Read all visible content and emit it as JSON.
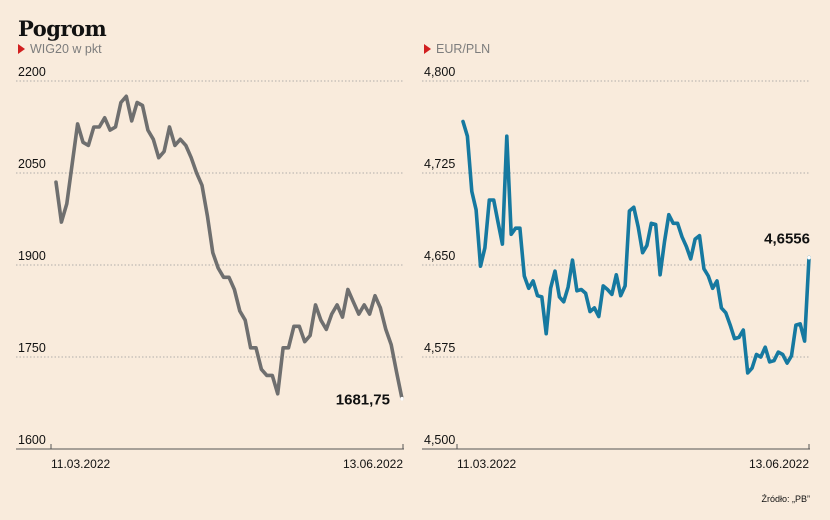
{
  "title": "Pogrom",
  "source": "Źródło: „PB”",
  "colors": {
    "background": "#f9ebdc",
    "marker": "#d11f1f",
    "wig_line": "#6f6f6f",
    "eur_line": "#1679a0",
    "grid": "#999999"
  },
  "chart_data": [
    {
      "type": "line",
      "subtitle": "WIG20 w pkt",
      "x_start_label": "11.03.2022",
      "x_end_label": "13.06.2022",
      "ylim": [
        1600,
        2200
      ],
      "yticks": [
        1600,
        1750,
        1900,
        2050,
        2200
      ],
      "ytick_labels": [
        "1600",
        "1750",
        "1900",
        "2050",
        "2200"
      ],
      "last_value_label": "1681,75",
      "grid": "horizontal dotted",
      "values": [
        2035,
        1970,
        2000,
        2065,
        2130,
        2100,
        2095,
        2125,
        2125,
        2140,
        2120,
        2125,
        2165,
        2175,
        2135,
        2165,
        2160,
        2120,
        2105,
        2075,
        2085,
        2125,
        2095,
        2105,
        2095,
        2075,
        2050,
        2030,
        1980,
        1920,
        1895,
        1880,
        1880,
        1860,
        1825,
        1810,
        1765,
        1765,
        1730,
        1720,
        1720,
        1690,
        1765,
        1765,
        1800,
        1800,
        1775,
        1785,
        1835,
        1810,
        1795,
        1820,
        1835,
        1815,
        1860,
        1840,
        1820,
        1835,
        1820,
        1850,
        1830,
        1795,
        1770,
        1725,
        1682
      ]
    },
    {
      "type": "line",
      "subtitle": "EUR/PLN",
      "x_start_label": "11.03.2022",
      "x_end_label": "13.06.2022",
      "ylim": [
        4.5,
        4.8
      ],
      "yticks": [
        4.5,
        4.575,
        4.65,
        4.725,
        4.8
      ],
      "ytick_labels": [
        "4,500",
        "4,575",
        "4,650",
        "4,725",
        "4,800"
      ],
      "last_value_label": "4,6556",
      "grid": "horizontal dotted",
      "values": [
        4.767,
        4.755,
        4.71,
        4.695,
        4.649,
        4.664,
        4.703,
        4.703,
        4.685,
        4.667,
        4.755,
        4.675,
        4.68,
        4.68,
        4.641,
        4.631,
        4.637,
        4.625,
        4.624,
        4.594,
        4.631,
        4.645,
        4.624,
        4.62,
        4.632,
        4.654,
        4.629,
        4.63,
        4.627,
        4.612,
        4.615,
        4.608,
        4.633,
        4.63,
        4.626,
        4.642,
        4.625,
        4.633,
        4.694,
        4.697,
        4.681,
        4.66,
        4.666,
        4.684,
        4.683,
        4.642,
        4.669,
        4.691,
        4.684,
        4.684,
        4.673,
        4.665,
        4.655,
        4.671,
        4.674,
        4.647,
        4.641,
        4.631,
        4.637,
        4.615,
        4.611,
        4.601,
        4.59,
        4.591,
        4.597,
        4.562,
        4.566,
        4.577,
        4.575,
        4.583,
        4.571,
        4.572,
        4.579,
        4.577,
        4.57,
        4.576,
        4.601,
        4.602,
        4.588,
        4.656
      ]
    }
  ]
}
